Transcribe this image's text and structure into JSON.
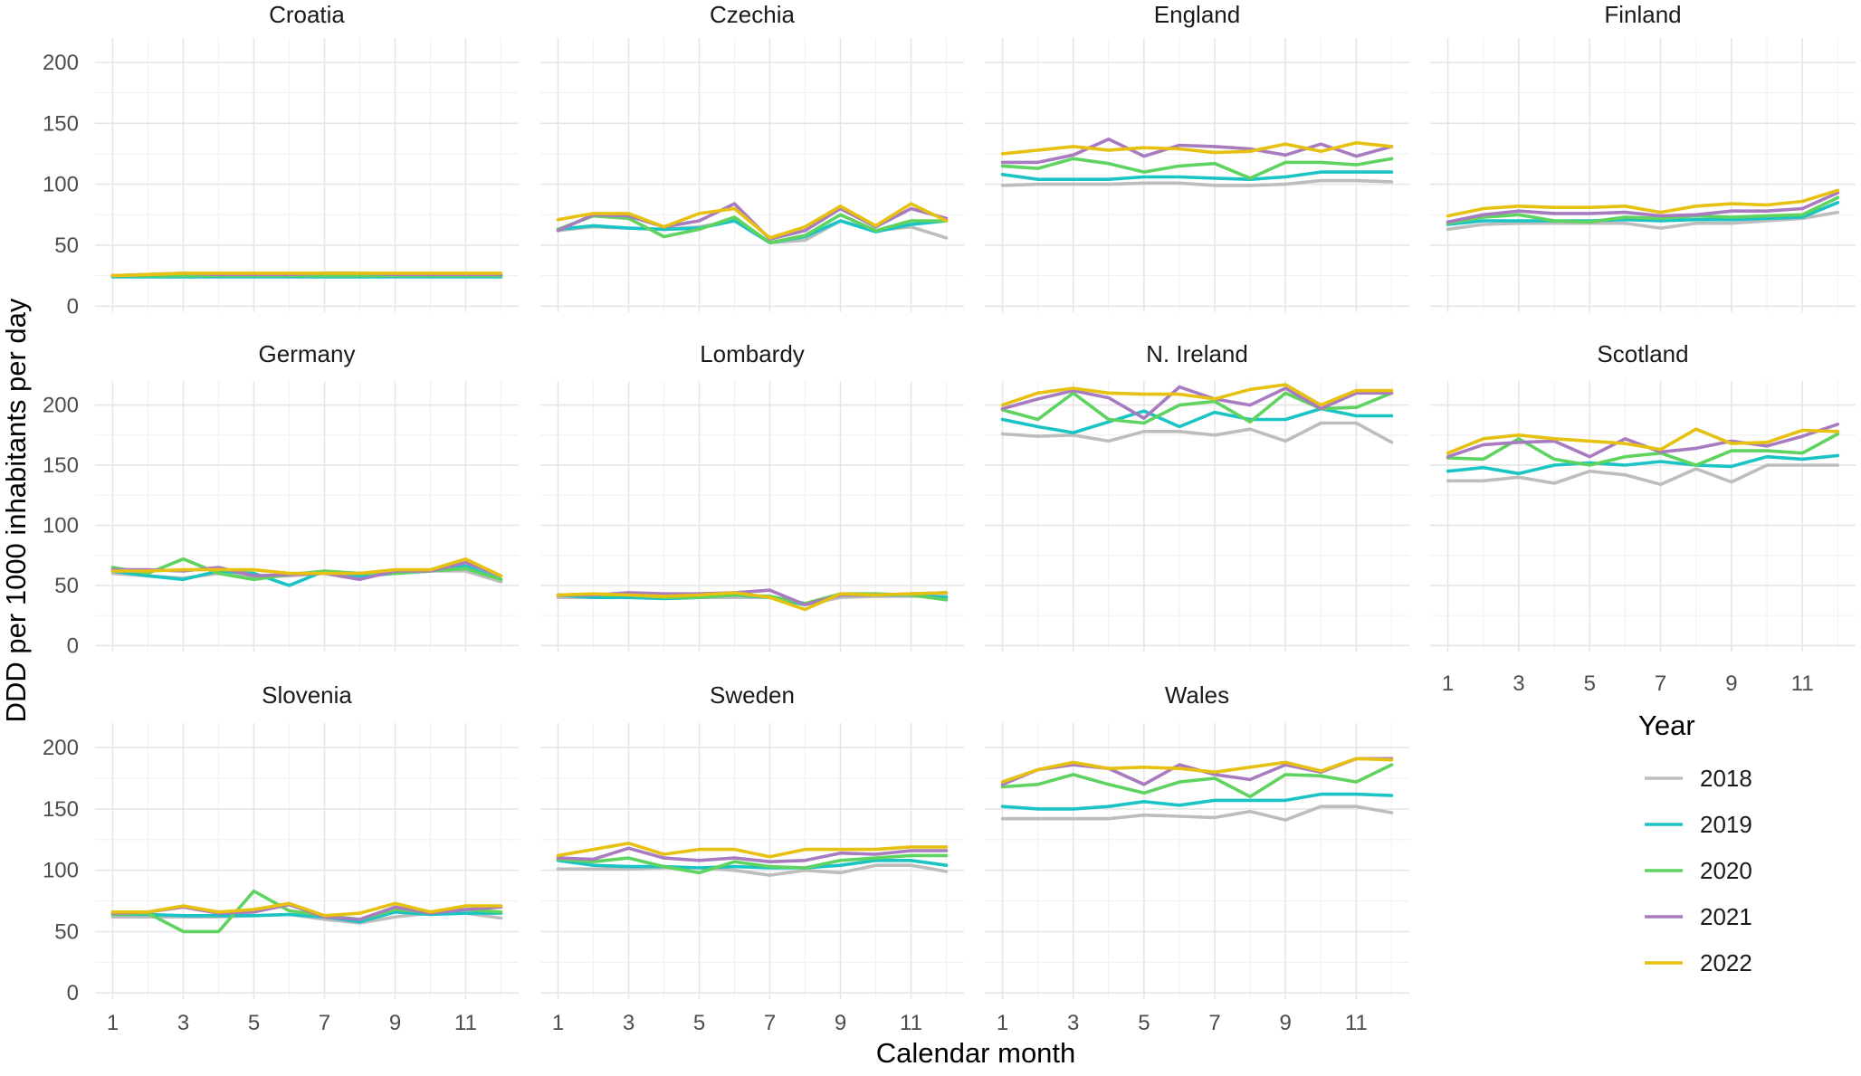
{
  "chart_data": {
    "type": "line",
    "xlabel": "Calendar month",
    "ylabel": "DDD per 1000 inhabitants per day",
    "x": [
      1,
      2,
      3,
      4,
      5,
      6,
      7,
      8,
      9,
      10,
      11,
      12
    ],
    "x_ticks": [
      1,
      3,
      5,
      7,
      9,
      11
    ],
    "y_ticks": [
      0,
      50,
      100,
      150,
      200
    ],
    "xlim": [
      0.5,
      12.5
    ],
    "ylim": [
      -5,
      220
    ],
    "grid": true,
    "legend": {
      "title": "Year",
      "position": "right",
      "entries": [
        {
          "name": "2018",
          "color": "#bdbdbd"
        },
        {
          "name": "2019",
          "color": "#1bc4c4"
        },
        {
          "name": "2020",
          "color": "#5fd35f"
        },
        {
          "name": "2021",
          "color": "#a87bc0"
        },
        {
          "name": "2022",
          "color": "#e6c110"
        }
      ]
    },
    "facets": [
      {
        "title": "Croatia",
        "series": [
          {
            "name": "2018",
            "values": [
              25,
              25,
              26,
              26,
              26,
              26,
              26,
              26,
              25,
              25,
              25,
              25
            ]
          },
          {
            "name": "2019",
            "values": [
              24,
              24,
              24,
              24,
              24,
              24,
              24,
              24,
              24,
              24,
              24,
              24
            ]
          },
          {
            "name": "2020",
            "values": [
              25,
              25,
              25,
              25,
              25,
              25,
              25,
              25,
              25,
              25,
              25,
              25
            ]
          },
          {
            "name": "2021",
            "values": [
              25,
              26,
              27,
              26,
              26,
              26,
              27,
              27,
              26,
              26,
              26,
              26
            ]
          },
          {
            "name": "2022",
            "values": [
              25,
              26,
              27,
              27,
              27,
              27,
              27,
              27,
              27,
              27,
              27,
              27
            ]
          }
        ]
      },
      {
        "title": "Czechia",
        "series": [
          {
            "name": "2018",
            "values": [
              62,
              65,
              64,
              63,
              65,
              70,
              52,
              54,
              70,
              62,
              65,
              56
            ]
          },
          {
            "name": "2019",
            "values": [
              63,
              66,
              64,
              63,
              64,
              70,
              52,
              57,
              70,
              61,
              67,
              70
            ]
          },
          {
            "name": "2020",
            "values": [
              63,
              74,
              72,
              57,
              63,
              73,
              52,
              58,
              75,
              62,
              70,
              70
            ]
          },
          {
            "name": "2021",
            "values": [
              62,
              75,
              74,
              65,
              70,
              84,
              55,
              62,
              80,
              65,
              80,
              72
            ]
          },
          {
            "name": "2022",
            "values": [
              71,
              76,
              76,
              65,
              76,
              80,
              56,
              65,
              82,
              66,
              84,
              70
            ]
          }
        ]
      },
      {
        "title": "England",
        "series": [
          {
            "name": "2018",
            "values": [
              99,
              100,
              100,
              100,
              101,
              101,
              99,
              99,
              100,
              103,
              103,
              102
            ]
          },
          {
            "name": "2019",
            "values": [
              108,
              104,
              104,
              104,
              106,
              106,
              105,
              104,
              106,
              110,
              110,
              110
            ]
          },
          {
            "name": "2020",
            "values": [
              115,
              113,
              121,
              117,
              110,
              115,
              117,
              105,
              118,
              118,
              116,
              121
            ]
          },
          {
            "name": "2021",
            "values": [
              118,
              118,
              124,
              137,
              123,
              132,
              131,
              129,
              124,
              133,
              123,
              131
            ]
          },
          {
            "name": "2022",
            "values": [
              125,
              128,
              131,
              128,
              130,
              129,
              126,
              127,
              133,
              127,
              134,
              131
            ]
          }
        ]
      },
      {
        "title": "Finland",
        "series": [
          {
            "name": "2018",
            "values": [
              63,
              67,
              68,
              68,
              68,
              68,
              64,
              68,
              68,
              70,
              72,
              77
            ]
          },
          {
            "name": "2019",
            "values": [
              67,
              70,
              70,
              70,
              70,
              71,
              70,
              71,
              71,
              72,
              73,
              85
            ]
          },
          {
            "name": "2020",
            "values": [
              68,
              73,
              75,
              70,
              69,
              73,
              72,
              74,
              73,
              74,
              75,
              89
            ]
          },
          {
            "name": "2021",
            "values": [
              69,
              75,
              78,
              76,
              76,
              77,
              74,
              75,
              78,
              78,
              80,
              93
            ]
          },
          {
            "name": "2022",
            "values": [
              74,
              80,
              82,
              81,
              81,
              82,
              77,
              82,
              84,
              83,
              86,
              95
            ]
          }
        ]
      },
      {
        "title": "Germany",
        "series": [
          {
            "name": "2018",
            "values": [
              60,
              58,
              56,
              60,
              57,
              58,
              60,
              57,
              60,
              62,
              62,
              53
            ]
          },
          {
            "name": "2019",
            "values": [
              62,
              58,
              55,
              62,
              60,
              50,
              62,
              58,
              60,
              62,
              66,
              55
            ]
          },
          {
            "name": "2020",
            "values": [
              65,
              60,
              72,
              60,
              55,
              59,
              62,
              60,
              60,
              62,
              64,
              55
            ]
          },
          {
            "name": "2021",
            "values": [
              63,
              63,
              62,
              65,
              58,
              59,
              60,
              55,
              62,
              62,
              69,
              58
            ]
          },
          {
            "name": "2022",
            "values": [
              62,
              62,
              63,
              63,
              63,
              60,
              60,
              60,
              63,
              63,
              72,
              58
            ]
          }
        ]
      },
      {
        "title": "Lombardy",
        "series": [
          {
            "name": "2018",
            "values": [
              40,
              40,
              40,
              40,
              40,
              40,
              40,
              34,
              40,
              41,
              41,
              41
            ]
          },
          {
            "name": "2019",
            "values": [
              42,
              40,
              40,
              39,
              40,
              42,
              40,
              34,
              42,
              42,
              42,
              40
            ]
          },
          {
            "name": "2020",
            "values": [
              42,
              42,
              42,
              40,
              40,
              42,
              41,
              35,
              43,
              43,
              42,
              38
            ]
          },
          {
            "name": "2021",
            "values": [
              42,
              42,
              44,
              43,
              43,
              44,
              46,
              34,
              42,
              42,
              43,
              44
            ]
          },
          {
            "name": "2022",
            "values": [
              42,
              43,
              42,
              41,
              42,
              44,
              40,
              30,
              43,
              42,
              43,
              44
            ]
          }
        ]
      },
      {
        "title": "N. Ireland",
        "series": [
          {
            "name": "2018",
            "values": [
              176,
              174,
              175,
              170,
              178,
              178,
              175,
              180,
              170,
              185,
              185,
              169
            ]
          },
          {
            "name": "2019",
            "values": [
              188,
              182,
              177,
              186,
              195,
              182,
              194,
              188,
              188,
              197,
              191,
              191
            ]
          },
          {
            "name": "2020",
            "values": [
              196,
              188,
              210,
              188,
              185,
              200,
              203,
              186,
              210,
              197,
              198,
              210
            ]
          },
          {
            "name": "2021",
            "values": [
              197,
              205,
              212,
              206,
              189,
              215,
              205,
              200,
              214,
              197,
              210,
              210
            ]
          },
          {
            "name": "2022",
            "values": [
              200,
              210,
              214,
              210,
              209,
              209,
              205,
              213,
              217,
              200,
              212,
              212
            ]
          }
        ]
      },
      {
        "title": "Scotland",
        "series": [
          {
            "name": "2018",
            "values": [
              137,
              137,
              140,
              135,
              145,
              142,
              134,
              147,
              136,
              150,
              150,
              150
            ]
          },
          {
            "name": "2019",
            "values": [
              145,
              148,
              143,
              150,
              152,
              150,
              153,
              150,
              149,
              157,
              155,
              158
            ]
          },
          {
            "name": "2020",
            "values": [
              156,
              155,
              172,
              155,
              150,
              157,
              160,
              150,
              162,
              162,
              160,
              176
            ]
          },
          {
            "name": "2021",
            "values": [
              157,
              167,
              169,
              170,
              157,
              172,
              161,
              164,
              170,
              166,
              174,
              184
            ]
          },
          {
            "name": "2022",
            "values": [
              160,
              172,
              175,
              172,
              170,
              168,
              163,
              180,
              168,
              169,
              179,
              178
            ]
          }
        ]
      },
      {
        "title": "Slovenia",
        "series": [
          {
            "name": "2018",
            "values": [
              62,
              62,
              62,
              62,
              63,
              64,
              60,
              57,
              62,
              65,
              65,
              61
            ]
          },
          {
            "name": "2019",
            "values": [
              64,
              64,
              63,
              63,
              63,
              64,
              62,
              58,
              66,
              64,
              65,
              65
            ]
          },
          {
            "name": "2020",
            "values": [
              64,
              65,
              50,
              50,
              83,
              67,
              63,
              60,
              68,
              66,
              68,
              66
            ]
          },
          {
            "name": "2021",
            "values": [
              65,
              66,
              70,
              65,
              66,
              72,
              62,
              60,
              70,
              65,
              68,
              70
            ]
          },
          {
            "name": "2022",
            "values": [
              66,
              66,
              71,
              66,
              68,
              73,
              63,
              65,
              73,
              66,
              71,
              71
            ]
          }
        ]
      },
      {
        "title": "Sweden",
        "series": [
          {
            "name": "2018",
            "values": [
              101,
              101,
              101,
              102,
              102,
              100,
              96,
              100,
              98,
              104,
              104,
              99
            ]
          },
          {
            "name": "2019",
            "values": [
              108,
              104,
              103,
              103,
              102,
              103,
              102,
              102,
              104,
              108,
              108,
              104
            ]
          },
          {
            "name": "2020",
            "values": [
              109,
              107,
              110,
              103,
              98,
              107,
              103,
              102,
              108,
              110,
              112,
              112
            ]
          },
          {
            "name": "2021",
            "values": [
              110,
              109,
              118,
              110,
              108,
              110,
              107,
              108,
              114,
              113,
              116,
              116
            ]
          },
          {
            "name": "2022",
            "values": [
              112,
              117,
              122,
              113,
              117,
              117,
              111,
              117,
              117,
              117,
              119,
              119
            ]
          }
        ]
      },
      {
        "title": "Wales",
        "series": [
          {
            "name": "2018",
            "values": [
              142,
              142,
              142,
              142,
              145,
              144,
              143,
              148,
              141,
              152,
              152,
              147
            ]
          },
          {
            "name": "2019",
            "values": [
              152,
              150,
              150,
              152,
              156,
              153,
              157,
              157,
              157,
              162,
              162,
              161
            ]
          },
          {
            "name": "2020",
            "values": [
              168,
              170,
              178,
              170,
              163,
              172,
              175,
              160,
              178,
              177,
              172,
              186
            ]
          },
          {
            "name": "2021",
            "values": [
              170,
              182,
              186,
              183,
              170,
              186,
              178,
              174,
              186,
              180,
              191,
              191
            ]
          },
          {
            "name": "2022",
            "values": [
              172,
              182,
              188,
              183,
              184,
              183,
              180,
              184,
              188,
              181,
              191,
              190
            ]
          }
        ]
      }
    ]
  }
}
